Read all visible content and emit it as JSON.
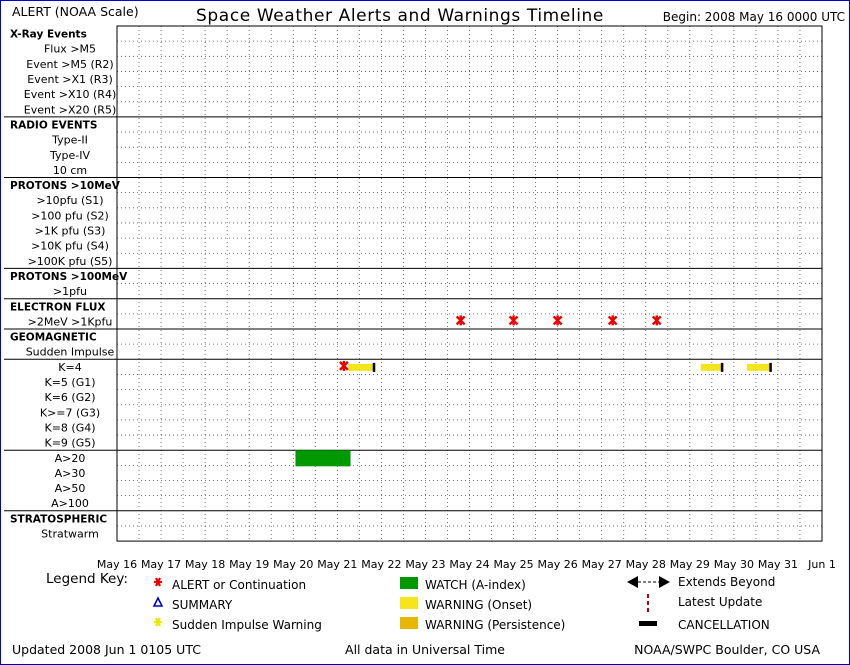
{
  "header": {
    "scale_label": "ALERT (NOAA Scale)",
    "title": "Space Weather Alerts and Warnings Timeline",
    "begin": "Begin: 2008 May 16 0000 UTC"
  },
  "rows": [
    {
      "label": "X-Ray Events",
      "header": true
    },
    {
      "label": "Flux >M5"
    },
    {
      "label": "Event >M5 (R2)"
    },
    {
      "label": "Event >X1 (R3)"
    },
    {
      "label": "Event >X10 (R4)"
    },
    {
      "label": "Event >X20 (R5)",
      "sep": true
    },
    {
      "label": "RADIO EVENTS",
      "header": true
    },
    {
      "label": "Type-II"
    },
    {
      "label": "Type-IV"
    },
    {
      "label": "10 cm",
      "sep": true
    },
    {
      "label": "PROTONS >10MeV",
      "header": true
    },
    {
      "label": ">10pfu (S1)"
    },
    {
      "label": ">100 pfu (S2)"
    },
    {
      "label": ">1K pfu (S3)"
    },
    {
      "label": ">10K pfu (S4)"
    },
    {
      "label": ">100K pfu (S5)",
      "sep": true
    },
    {
      "label": "PROTONS >100MeV",
      "header": true
    },
    {
      "label": ">1pfu",
      "sep": true
    },
    {
      "label": "ELECTRON FLUX",
      "header": true
    },
    {
      "label": ">2MeV >1Kpfu",
      "sep": true
    },
    {
      "label": "GEOMAGNETIC",
      "header": true
    },
    {
      "label": "Sudden Impulse",
      "sep": true
    },
    {
      "label": "K=4"
    },
    {
      "label": "K=5 (G1)"
    },
    {
      "label": "K=6 (G2)"
    },
    {
      "label": "K>=7 (G3)"
    },
    {
      "label": "K=8 (G4)"
    },
    {
      "label": "K=9 (G5)",
      "sep": true
    },
    {
      "label": "A>20"
    },
    {
      "label": "A>30"
    },
    {
      "label": "A>50"
    },
    {
      "label": "A>100",
      "sep": true
    },
    {
      "label": "STRATOSPHERIC",
      "header": true
    },
    {
      "label": "Stratwarm"
    }
  ],
  "chart_data": {
    "type": "timeline",
    "x_range_days": [
      0,
      16
    ],
    "day_labels": [
      "May 16",
      "May 17",
      "May 18",
      "May 19",
      "May 20",
      "May 21",
      "May 22",
      "May 23",
      "May 24",
      "May 25",
      "May 26",
      "May 27",
      "May 28",
      "May 29",
      "May 30",
      "May 31",
      "Jun 1"
    ],
    "alerts": [
      {
        "row": 19,
        "day": 7.8
      },
      {
        "row": 19,
        "day": 9.0
      },
      {
        "row": 19,
        "day": 10.0
      },
      {
        "row": 19,
        "day": 11.25
      },
      {
        "row": 19,
        "day": 12.25
      },
      {
        "row": 22,
        "day": 5.15
      }
    ],
    "warnings_onset": [
      {
        "row": 22,
        "start": 5.25,
        "end": 5.85
      },
      {
        "row": 22,
        "start": 13.25,
        "end": 13.75
      },
      {
        "row": 22,
        "start": 14.3,
        "end": 14.85
      }
    ],
    "watches": [
      {
        "row": 28,
        "start": 4.05,
        "end": 5.3
      }
    ]
  },
  "colors": {
    "alert": "#ee0000",
    "summary": "#0000cc",
    "sudden_impulse": "#e8e800",
    "watch": "#009900",
    "warning_onset": "#f5e51b",
    "warning_persistence": "#e8b800",
    "frame": "#0000cc"
  },
  "legend": {
    "key_label": "Legend Key:",
    "items": [
      {
        "text": "ALERT or Continuation",
        "icon": "alert-star-icon"
      },
      {
        "text": "SUMMARY",
        "icon": "summary-triangle-icon"
      },
      {
        "text": "Sudden Impulse Warning",
        "icon": "sudden-impulse-star-icon"
      },
      {
        "text": "WATCH (A-index)",
        "icon": "watch-swatch-icon"
      },
      {
        "text": "WARNING (Onset)",
        "icon": "warning-onset-swatch-icon"
      },
      {
        "text": "WARNING (Persistence)",
        "icon": "warning-persistence-swatch-icon"
      },
      {
        "text": "Extends Beyond",
        "icon": "double-arrow-icon"
      },
      {
        "text": "Latest Update",
        "icon": "dashed-line-icon"
      },
      {
        "text": "CANCELLATION",
        "icon": "cancellation-bar-icon"
      }
    ]
  },
  "footer": {
    "updated": "Updated 2008 Jun  1 0105 UTC",
    "note": "All data in Universal Time",
    "source": "NOAA/SWPC Boulder, CO USA"
  }
}
